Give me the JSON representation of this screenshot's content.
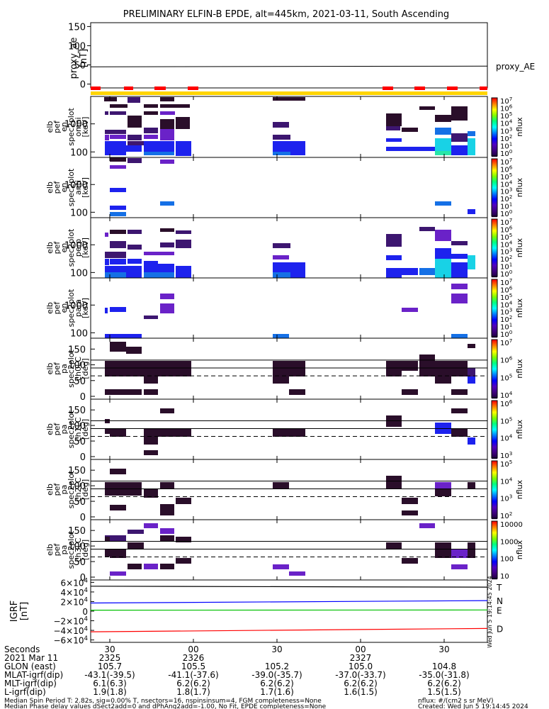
{
  "title": "PRELIMINARY ELFIN-B EPDE, alt=445km, 2021-03-11, South Ascending",
  "chart_data": {
    "type": "heatmap",
    "time_ticks": [
      "30",
      "00",
      "30",
      "00",
      "30"
    ],
    "panels": [
      {
        "id": "proxy_ae",
        "type": "line",
        "ylabel": [
          "proxy_ae",
          "[nT]"
        ],
        "yticks": [
          "150",
          "100",
          "50",
          "0"
        ],
        "ylim": [
          -10,
          160
        ],
        "legend": "proxy_AE",
        "line_value": 45
      },
      {
        "id": "energy_omni",
        "type": "heatmap",
        "ylabel": [
          "elb",
          "pef",
          "en",
          "spec2plot",
          "omni",
          "[keV]"
        ],
        "yticks": [
          "1000",
          "100"
        ],
        "colorbar": {
          "ticks": [
            "10^7",
            "10^6",
            "10^5",
            "10^4",
            "10^3",
            "10^2",
            "10^1",
            "10^0"
          ],
          "label": "nflux"
        }
      },
      {
        "id": "energy_anti",
        "type": "heatmap",
        "ylabel": [
          "elb",
          "pef",
          "en",
          "spec2plot",
          "anti",
          "[keV]"
        ],
        "yticks": [
          "1000",
          "100"
        ],
        "colorbar": {
          "ticks": [
            "10^7",
            "10^6",
            "10^5",
            "10^4",
            "10^3",
            "10^2",
            "10^1",
            "10^0"
          ],
          "label": "nflux"
        }
      },
      {
        "id": "energy_perp",
        "type": "heatmap",
        "ylabel": [
          "elb",
          "pef",
          "en",
          "spec2plot",
          "perp",
          "[keV]"
        ],
        "yticks": [
          "1000",
          "100"
        ],
        "colorbar": {
          "ticks": [
            "10^7",
            "10^6",
            "10^5",
            "10^4",
            "10^3",
            "10^2",
            "10^1",
            "10^0"
          ],
          "label": "nflux"
        }
      },
      {
        "id": "energy_para",
        "type": "heatmap",
        "ylabel": [
          "elb",
          "pef",
          "en",
          "spec2plot",
          "para",
          "[keV]"
        ],
        "yticks": [
          "1000",
          "100"
        ],
        "colorbar": {
          "ticks": [
            "10^7",
            "10^6",
            "10^5",
            "10^4",
            "10^3",
            "10^2",
            "10^1",
            "10^0"
          ],
          "label": "nflux"
        }
      },
      {
        "id": "pa_ch0",
        "type": "heatmap",
        "ylabel": [
          "elb",
          "pef",
          "pa",
          "spec2plot",
          "ch0LC",
          "[deg]"
        ],
        "yticks": [
          "150",
          "100",
          "50",
          "0"
        ],
        "colorbar": {
          "ticks": [
            "10^7",
            "10^6",
            "10^5",
            "10^4"
          ],
          "label": "nflux"
        }
      },
      {
        "id": "pa_ch1",
        "type": "heatmap",
        "ylabel": [
          "elb",
          "pef",
          "pa",
          "spec2plot",
          "ch1LC",
          "[deg]"
        ],
        "yticks": [
          "150",
          "100",
          "50",
          "0"
        ],
        "colorbar": {
          "ticks": [
            "10^6",
            "10^5",
            "10^4",
            "10^3"
          ],
          "label": "nflux"
        }
      },
      {
        "id": "pa_ch2",
        "type": "heatmap",
        "ylabel": [
          "elb",
          "pef",
          "pa",
          "spec2plot",
          "ch2LC",
          "[deg]"
        ],
        "yticks": [
          "150",
          "100",
          "50",
          "0"
        ],
        "colorbar": {
          "ticks": [
            "10^5",
            "10^4",
            "10^3",
            "10^2"
          ],
          "label": "nflux"
        }
      },
      {
        "id": "pa_ch3",
        "type": "heatmap",
        "ylabel": [
          "elb",
          "pef",
          "pa",
          "spec2plot",
          "ch3LC",
          "[deg]"
        ],
        "yticks": [
          "150",
          "100",
          "50",
          "0"
        ],
        "colorbar": {
          "ticks": [
            "10000",
            "1000",
            "100",
            "10"
          ],
          "label": "nflux"
        }
      },
      {
        "id": "igrf",
        "type": "line",
        "ylabel": [
          "IGRF",
          "[nT]"
        ],
        "yticks": [
          "6×10^4",
          "4×10^4",
          "2×10^4",
          "0",
          "−2×10^4",
          "−4×10^4",
          "−6×10^4"
        ],
        "ylim": [
          -65000,
          65000
        ],
        "series": [
          {
            "name": "T",
            "color": "#000000",
            "start": 52000,
            "end": 50000
          },
          {
            "name": "N",
            "color": "#0000ff",
            "start": 17000,
            "end": 22000
          },
          {
            "name": "E",
            "color": "#00c000",
            "start": 2000,
            "end": 2500
          },
          {
            "name": "D",
            "color": "#ff0000",
            "start": -43000,
            "end": -36000
          }
        ],
        "side_text": "Wed Jun 5 19:14:45 2024"
      }
    ]
  },
  "footer": {
    "rows": [
      {
        "label": "Seconds",
        "values": [
          "30",
          "00",
          "30",
          "00",
          "30"
        ]
      },
      {
        "label": "2021 Mar 11",
        "values": [
          "2325",
          "2326",
          "",
          "2327",
          ""
        ]
      },
      {
        "label": "GLON (east)",
        "values": [
          "105.7",
          "105.5",
          "105.2",
          "105.0",
          "104.8"
        ]
      },
      {
        "label": "MLAT-igrf(dip)",
        "values": [
          "-43.1(-39.5)",
          "-41.1(-37.6)",
          "-39.0(-35.7)",
          "-37.0(-33.7)",
          "-35.0(-31.8)"
        ]
      },
      {
        "label": "MLT-igrf(dip)",
        "values": [
          "6.1(6.3)",
          "6.2(6.2)",
          "6.2(6.2)",
          "6.2(6.2)",
          "6.2(6.2)"
        ]
      },
      {
        "label": "L-igrf(dip)",
        "values": [
          "1.9(1.8)",
          "1.8(1.7)",
          "1.7(1.6)",
          "1.6(1.5)",
          "1.5(1.5)"
        ]
      }
    ],
    "note1": "Median Spin Period T: 2.82s, sig=0.00% T, nsectors=16, nspinsinsum=4, FGM completeness=None",
    "note2": "Median Phase delay values dSect2add=0 and dPhAng2add=-1.00, No Fit, EPDE completeness=None",
    "units": "nflux: #/(cm2 s sr MeV)",
    "created": "Created: Wed Jun  5 19:14:45 2024"
  }
}
